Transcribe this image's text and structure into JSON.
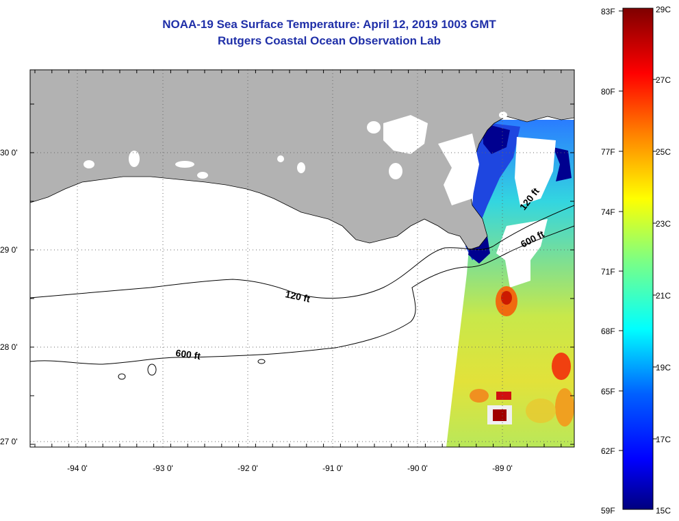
{
  "title": "NOAA-19 Sea Surface Temperature:  April 12, 2019 1003 GMT",
  "subtitle": "Rutgers Coastal Ocean Observation Lab",
  "axes": {
    "lon_ticks": [
      "-94 0'",
      "-93 0'",
      "-92 0'",
      "-91 0'",
      "-90 0'",
      "-89 0'"
    ],
    "lat_ticks": [
      "30 0'",
      "29 0'",
      "28 0'",
      "27 0'"
    ]
  },
  "contours": {
    "shelf": "120 ft",
    "slope": "600 ft"
  },
  "colorbar": {
    "fahrenheit": [
      "83F",
      "80F",
      "77F",
      "74F",
      "71F",
      "68F",
      "65F",
      "62F",
      "59F"
    ],
    "celsius": [
      "29C",
      "27C",
      "25C",
      "23C",
      "21C",
      "19C",
      "17C",
      "15C"
    ]
  },
  "colors": {
    "land": "#b2b2b2",
    "title": "#1f2fa8",
    "cold": "#00008f",
    "warm": "#800000"
  }
}
